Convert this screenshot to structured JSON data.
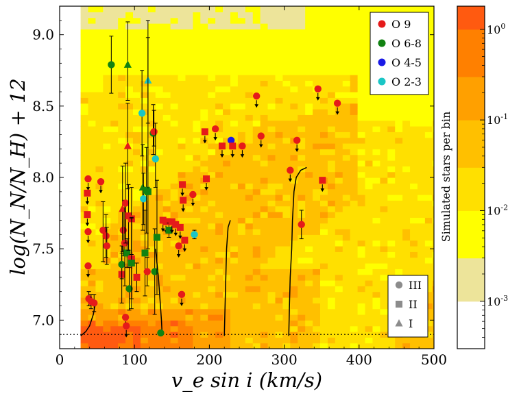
{
  "chart_data": {
    "type": "scatter",
    "xlabel": "v_e sin i (km/s)",
    "ylabel": "log(N_N/N_H) + 12",
    "xlim": [
      0,
      500
    ],
    "ylim": [
      6.8,
      9.2
    ],
    "xticks": [
      0,
      100,
      200,
      300,
      400,
      500
    ],
    "yticks": [
      7.0,
      7.5,
      8.0,
      8.5,
      9.0
    ],
    "xtick_labels": [
      "0",
      "100",
      "200",
      "300",
      "400",
      "500"
    ],
    "ytick_labels": [
      "7.0",
      "7.5",
      "8.0",
      "8.5",
      "9.0"
    ],
    "reference_line_y": 6.9,
    "colorbar": {
      "label": "Simulated stars per bin",
      "scale": "log",
      "range": [
        0.0003,
        1.8
      ],
      "ticks": [
        0.001,
        0.01,
        0.1,
        1
      ],
      "tick_labels": [
        "10^-3",
        "10^-2",
        "10^-1",
        "10^0"
      ],
      "levels": [
        {
          "from": 0.0003,
          "to": 0.001,
          "color": "#ffffff"
        },
        {
          "from": 0.001,
          "to": 0.003,
          "color": "#ede49a"
        },
        {
          "from": 0.003,
          "to": 0.01,
          "color": "#ffff00"
        },
        {
          "from": 0.01,
          "to": 0.03,
          "color": "#ffe000"
        },
        {
          "from": 0.03,
          "to": 0.1,
          "color": "#ffc000"
        },
        {
          "from": 0.1,
          "to": 0.3,
          "color": "#ffa000"
        },
        {
          "from": 0.3,
          "to": 1.0,
          "color": "#ff8000"
        },
        {
          "from": 1.0,
          "to": 1.8,
          "color": "#ff5a10"
        }
      ]
    },
    "legend_spectral": {
      "placement": "top-right",
      "items": [
        {
          "label": "O 9",
          "color": "#e51a1a"
        },
        {
          "label": "O 6-8",
          "color": "#118211"
        },
        {
          "label": "O 4-5",
          "color": "#1a1ae6"
        },
        {
          "label": "O 2-3",
          "color": "#1ac6c6"
        }
      ]
    },
    "legend_class": {
      "placement": "bottom-right",
      "items": [
        {
          "label": "III",
          "marker": "circle"
        },
        {
          "label": "II",
          "marker": "square"
        },
        {
          "label": "I",
          "marker": "triangle"
        }
      ]
    },
    "curves": [
      [
        [
          28,
          6.89
        ],
        [
          35,
          6.92
        ],
        [
          40,
          6.96
        ],
        [
          45,
          7.04
        ],
        [
          48,
          7.12
        ]
      ],
      [
        [
          137,
          6.89
        ],
        [
          136,
          7.0
        ],
        [
          134,
          7.15
        ],
        [
          132,
          7.3
        ],
        [
          128,
          7.5
        ]
      ],
      [
        [
          220,
          6.89
        ],
        [
          221,
          7.1
        ],
        [
          222,
          7.3
        ],
        [
          223,
          7.5
        ],
        [
          225,
          7.65
        ],
        [
          228,
          7.7
        ]
      ],
      [
        [
          306,
          6.89
        ],
        [
          307,
          7.1
        ],
        [
          308,
          7.3
        ],
        [
          310,
          7.5
        ],
        [
          311,
          7.7
        ],
        [
          313,
          7.9
        ],
        [
          316,
          8.0
        ],
        [
          322,
          8.05
        ],
        [
          330,
          8.07
        ]
      ]
    ],
    "points": [
      {
        "x": 38,
        "y": 7.99,
        "s": "O 9",
        "m": "circle",
        "up": true
      },
      {
        "x": 37,
        "y": 7.89,
        "s": "O 9",
        "m": "square",
        "up": true
      },
      {
        "x": 37,
        "y": 7.74,
        "s": "O 9",
        "m": "square",
        "up": true
      },
      {
        "x": 38,
        "y": 7.62,
        "s": "O 9",
        "m": "circle",
        "up": true
      },
      {
        "x": 38,
        "y": 7.38,
        "s": "O 9",
        "m": "circle",
        "up": true
      },
      {
        "x": 39,
        "y": 7.15,
        "s": "O 9",
        "m": "circle",
        "up": false,
        "elo": 0.05,
        "ehi": 0.05
      },
      {
        "x": 42,
        "y": 7.13,
        "s": "O 9",
        "m": "circle",
        "up": false,
        "elo": 0.05,
        "ehi": 0.05
      },
      {
        "x": 46,
        "y": 7.12,
        "s": "O 9",
        "m": "circle",
        "up": false,
        "elo": 0.06,
        "ehi": 0.06
      },
      {
        "x": 55,
        "y": 7.97,
        "s": "O 9",
        "m": "circle",
        "up": true
      },
      {
        "x": 58,
        "y": 7.63,
        "s": "O 9",
        "m": "circle",
        "up": false,
        "elo": 0.22,
        "ehi": 0.2
      },
      {
        "x": 62,
        "y": 7.59,
        "s": "O 9",
        "m": "circle",
        "up": false,
        "elo": 0.15,
        "ehi": 0.15
      },
      {
        "x": 63,
        "y": 7.52,
        "s": "O 9",
        "m": "circle",
        "up": false,
        "elo": 0.13,
        "ehi": 0.13
      },
      {
        "x": 69,
        "y": 8.79,
        "s": "O 6-8",
        "m": "circle",
        "up": false,
        "elo": 0.2,
        "ehi": 0.2
      },
      {
        "x": 85,
        "y": 7.63,
        "s": "O 9",
        "m": "circle",
        "up": false,
        "elo": 0.18,
        "ehi": 0.15
      },
      {
        "x": 83,
        "y": 7.32,
        "s": "O 9",
        "m": "square",
        "up": false,
        "elo": 0.2,
        "ehi": 0.2
      },
      {
        "x": 83,
        "y": 7.39,
        "s": "O 6-8",
        "m": "circle",
        "up": false,
        "elo": 0.1,
        "ehi": 0.08
      },
      {
        "x": 84,
        "y": 7.78,
        "s": "O 9",
        "m": "triangle",
        "up": false,
        "elo": 0.3,
        "ehi": 0.3
      },
      {
        "x": 87,
        "y": 7.54,
        "s": "O 9",
        "m": "circle",
        "up": false,
        "elo": 0.3,
        "ehi": 0.3
      },
      {
        "x": 88,
        "y": 7.82,
        "s": "O 9",
        "m": "circle",
        "up": false,
        "elo": 0.28,
        "ehi": 0.28
      },
      {
        "x": 88,
        "y": 7.02,
        "s": "O 9",
        "m": "circle",
        "up": true
      },
      {
        "x": 89,
        "y": 6.96,
        "s": "O 9",
        "m": "circle",
        "up": true
      },
      {
        "x": 90,
        "y": 7.47,
        "s": "O 6-8",
        "m": "square",
        "up": false,
        "elo": 0.1,
        "ehi": 0.1
      },
      {
        "x": 91,
        "y": 8.22,
        "s": "O 9",
        "m": "triangle",
        "up": false,
        "elo": 0.3,
        "ehi": 0.3
      },
      {
        "x": 91,
        "y": 8.79,
        "s": "O 6-8",
        "m": "triangle",
        "up": false,
        "elo": 0.25,
        "ehi": 0.3
      },
      {
        "x": 92,
        "y": 7.73,
        "s": "O 9",
        "m": "square",
        "up": false,
        "elo": 0.24,
        "ehi": 0.22
      },
      {
        "x": 93,
        "y": 7.22,
        "s": "O 6-8",
        "m": "circle",
        "up": false,
        "elo": 0.15,
        "ehi": 0.15
      },
      {
        "x": 96,
        "y": 7.71,
        "s": "O 9",
        "m": "square",
        "up": false,
        "elo": 0.25,
        "ehi": 0.22
      },
      {
        "x": 96,
        "y": 7.43,
        "s": "O 9",
        "m": "square",
        "up": false,
        "elo": 0.28,
        "ehi": 0.28
      },
      {
        "x": 96,
        "y": 7.4,
        "s": "O 6-8",
        "m": "square",
        "up": false,
        "elo": 0.32,
        "ehi": 0.32
      },
      {
        "x": 103,
        "y": 7.3,
        "s": "O 9",
        "m": "square",
        "up": false,
        "elo": 0.1,
        "ehi": 0.1
      },
      {
        "x": 110,
        "y": 8.45,
        "s": "O 2-3",
        "m": "circle",
        "up": false,
        "elo": 0.3,
        "ehi": 0.3
      },
      {
        "x": 111,
        "y": 7.93,
        "s": "O 6-8",
        "m": "triangle",
        "up": false,
        "elo": 0.3,
        "ehi": 0.3
      },
      {
        "x": 112,
        "y": 7.85,
        "s": "O 2-3",
        "m": "circle",
        "up": false,
        "elo": 0.18,
        "ehi": 0.18
      },
      {
        "x": 114,
        "y": 7.47,
        "s": "O 6-8",
        "m": "square",
        "up": false,
        "elo": 0.3,
        "ehi": 0.3
      },
      {
        "x": 116,
        "y": 7.91,
        "s": "O 6-8",
        "m": "square",
        "up": false,
        "elo": 0.3,
        "ehi": 0.3
      },
      {
        "x": 117,
        "y": 7.34,
        "s": "O 9",
        "m": "circle",
        "up": false,
        "elo": 0.1,
        "ehi": 0.1
      },
      {
        "x": 118,
        "y": 8.68,
        "s": "O 2-3",
        "m": "triangle",
        "up": false,
        "elo": 0.3,
        "ehi": 0.3
      },
      {
        "x": 118,
        "y": 7.9,
        "s": "O 6-8",
        "m": "square",
        "up": false,
        "elo": 0.4,
        "ehi": 1.2
      },
      {
        "x": 125,
        "y": 8.31,
        "s": "O 6-8",
        "m": "circle",
        "up": false,
        "elo": 0.15,
        "ehi": 0.2
      },
      {
        "x": 126,
        "y": 8.32,
        "s": "O 9",
        "m": "circle",
        "up": false,
        "elo": 0.1,
        "ehi": 0.15
      },
      {
        "x": 127,
        "y": 7.34,
        "s": "O 6-8",
        "m": "circle",
        "up": false,
        "elo": 0.3,
        "ehi": 0.3
      },
      {
        "x": 128,
        "y": 8.13,
        "s": "O 2-3",
        "m": "circle",
        "up": false,
        "elo": 0.2,
        "ehi": 0.25
      },
      {
        "x": 130,
        "y": 7.58,
        "s": "O 6-8",
        "m": "square",
        "up": false,
        "elo": 0.4,
        "ehi": 0.4
      },
      {
        "x": 135,
        "y": 6.91,
        "s": "O 6-8",
        "m": "circle",
        "up": false,
        "elo": 0.0,
        "ehi": 0.0
      },
      {
        "x": 138,
        "y": 7.7,
        "s": "O 9",
        "m": "square",
        "up": true
      },
      {
        "x": 142,
        "y": 7.69,
        "s": "O 9",
        "m": "square",
        "up": true
      },
      {
        "x": 146,
        "y": 7.63,
        "s": "O 6-8",
        "m": "square",
        "up": false,
        "elo": 0.05,
        "ehi": 0.05
      },
      {
        "x": 150,
        "y": 7.69,
        "s": "O 9",
        "m": "square",
        "up": true
      },
      {
        "x": 155,
        "y": 7.67,
        "s": "O 9",
        "m": "square",
        "up": true
      },
      {
        "x": 159,
        "y": 7.52,
        "s": "O 9",
        "m": "circle",
        "up": true
      },
      {
        "x": 161,
        "y": 7.65,
        "s": "O 9",
        "m": "square",
        "up": true
      },
      {
        "x": 163,
        "y": 7.18,
        "s": "O 9",
        "m": "circle",
        "up": true
      },
      {
        "x": 164,
        "y": 7.95,
        "s": "O 9",
        "m": "square",
        "up": true
      },
      {
        "x": 165,
        "y": 7.84,
        "s": "O 9",
        "m": "square",
        "up": true
      },
      {
        "x": 167,
        "y": 7.56,
        "s": "O 9",
        "m": "square",
        "up": true
      },
      {
        "x": 178,
        "y": 7.88,
        "s": "O 9",
        "m": "circle",
        "up": true
      },
      {
        "x": 180,
        "y": 7.6,
        "s": "O 2-3",
        "m": "circle",
        "up": false,
        "elo": 0.03,
        "ehi": 0.03
      },
      {
        "x": 194,
        "y": 8.32,
        "s": "O 9",
        "m": "square",
        "up": true
      },
      {
        "x": 196,
        "y": 7.99,
        "s": "O 9",
        "m": "square",
        "up": true
      },
      {
        "x": 208,
        "y": 8.34,
        "s": "O 9",
        "m": "circle",
        "up": true
      },
      {
        "x": 217,
        "y": 8.22,
        "s": "O 9",
        "m": "square",
        "up": true
      },
      {
        "x": 229,
        "y": 8.26,
        "s": "O 4-5",
        "m": "circle",
        "up": false,
        "elo": 0.0,
        "ehi": 0.0
      },
      {
        "x": 231,
        "y": 8.22,
        "s": "O 9",
        "m": "square",
        "up": true
      },
      {
        "x": 244,
        "y": 8.22,
        "s": "O 9",
        "m": "circle",
        "up": true
      },
      {
        "x": 263,
        "y": 8.57,
        "s": "O 9",
        "m": "circle",
        "up": true
      },
      {
        "x": 269,
        "y": 8.29,
        "s": "O 9",
        "m": "circle",
        "up": true
      },
      {
        "x": 308,
        "y": 8.05,
        "s": "O 9",
        "m": "circle",
        "up": true
      },
      {
        "x": 317,
        "y": 8.26,
        "s": "O 9",
        "m": "circle",
        "up": true
      },
      {
        "x": 323,
        "y": 7.67,
        "s": "O 9",
        "m": "circle",
        "up": false,
        "elo": 0.1,
        "ehi": 0.1
      },
      {
        "x": 345,
        "y": 8.62,
        "s": "O 9",
        "m": "circle",
        "up": true
      },
      {
        "x": 351,
        "y": 7.98,
        "s": "O 9",
        "m": "square",
        "up": true
      },
      {
        "x": 371,
        "y": 8.52,
        "s": "O 9",
        "m": "circle",
        "up": true
      }
    ]
  }
}
